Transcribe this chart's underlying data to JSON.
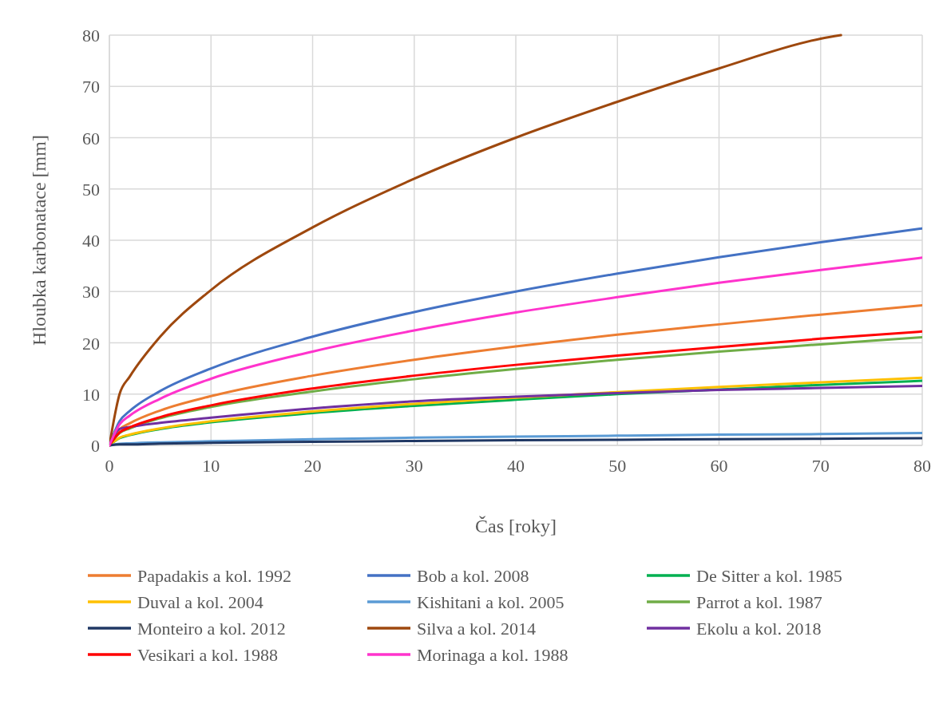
{
  "chart_data": {
    "type": "line",
    "xlabel": "Čas [roky]",
    "ylabel": "Hloubka karbonatace [mm]",
    "x": [
      0,
      1,
      2,
      5,
      10,
      20,
      30,
      40,
      50,
      60,
      70,
      80
    ],
    "xlim": [
      0,
      80
    ],
    "xticks": [
      0,
      10,
      20,
      30,
      40,
      50,
      60,
      70,
      80
    ],
    "ylim": [
      0,
      80
    ],
    "yticks": [
      0,
      10,
      20,
      30,
      40,
      50,
      60,
      70,
      80
    ],
    "grid": true,
    "legend": "bottom",
    "marker": "none",
    "line_style": "solid",
    "series": [
      {
        "name": "Papadakis a kol. 1992",
        "color": "#ed7d31",
        "values": [
          0,
          3.1,
          4.3,
          6.8,
          9.6,
          13.6,
          16.7,
          19.3,
          21.6,
          23.6,
          25.5,
          27.3
        ]
      },
      {
        "name": "Bob a kol. 2008",
        "color": "#4472c4",
        "values": [
          0,
          4.7,
          6.7,
          10.6,
          15,
          21.2,
          26,
          30,
          33.5,
          36.7,
          39.6,
          42.3
        ]
      },
      {
        "name": "De Sitter a kol. 1985",
        "color": "#00b050",
        "values": [
          0,
          1.4,
          2,
          3.2,
          4.5,
          6.3,
          7.7,
          8.9,
          10,
          10.9,
          11.8,
          12.6
        ]
      },
      {
        "name": "Duval a kol. 2004",
        "color": "#ffc000",
        "values": [
          0,
          1.5,
          2.1,
          3.3,
          4.7,
          6.6,
          8.1,
          9.3,
          10.4,
          11.4,
          12.3,
          13.2
        ]
      },
      {
        "name": "Kishitani a kol. 2005",
        "color": "#5b9bd5",
        "values": [
          0,
          0.3,
          0.4,
          0.6,
          0.8,
          1.2,
          1.5,
          1.7,
          1.9,
          2.1,
          2.2,
          2.4
        ]
      },
      {
        "name": "Parrot a kol. 1987",
        "color": "#70ad47",
        "values": [
          0,
          2.4,
          3.3,
          5.3,
          7.5,
          10.5,
          12.9,
          14.9,
          16.7,
          18.3,
          19.7,
          21.1
        ]
      },
      {
        "name": "Monteiro a kol. 2012",
        "color": "#203864",
        "values": [
          0,
          0.2,
          0.2,
          0.35,
          0.5,
          0.7,
          0.85,
          1,
          1.1,
          1.2,
          1.3,
          1.4
        ]
      },
      {
        "name": "Silva a kol. 2014",
        "color": "#9e480e",
        "x": [
          0,
          1,
          2,
          5,
          10,
          20,
          30,
          40,
          50,
          60,
          70,
          72
        ],
        "values": [
          0,
          10,
          13.4,
          21.2,
          30.3,
          42.5,
          52,
          60,
          67,
          73.5,
          79.3,
          80
        ]
      },
      {
        "name": "Ekolu a kol. 2018",
        "color": "#7030a0",
        "values": [
          0,
          3.2,
          3.6,
          4.4,
          5.4,
          7.2,
          8.6,
          9.5,
          10.2,
          10.8,
          11.2,
          11.6
        ]
      },
      {
        "name": "Vesikari a kol. 1988",
        "color": "#ff0000",
        "values": [
          0,
          2.5,
          3.5,
          5.5,
          7.8,
          11.1,
          13.6,
          15.7,
          17.5,
          19.2,
          20.8,
          22.2
        ]
      },
      {
        "name": "Morinaga a kol. 1988",
        "color": "#ff33cc",
        "values": [
          0,
          4.1,
          5.8,
          9.1,
          13,
          18.3,
          22.4,
          25.9,
          28.9,
          31.7,
          34.2,
          36.6
        ]
      }
    ]
  }
}
